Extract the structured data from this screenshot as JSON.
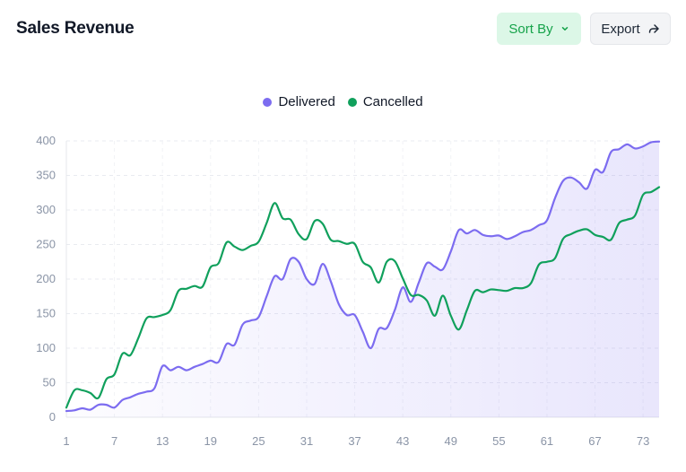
{
  "header": {
    "title": "Sales Revenue",
    "sort_label": "Sort By",
    "export_label": "Export"
  },
  "colors": {
    "delivered": "#7c6cf0",
    "cancelled": "#10a05c",
    "sort_accent": "#16a34a",
    "axis_text": "#8a94a6"
  },
  "icons": {
    "sort": "chevron-down-icon",
    "export": "share-arrow-icon"
  },
  "chart_data": {
    "type": "area",
    "title": "",
    "xlabel": "",
    "ylabel": "",
    "legend_position": "top-center",
    "grid": true,
    "xlim": [
      1,
      75
    ],
    "ylim": [
      0,
      400
    ],
    "x_tick_labels": [
      "1",
      "7",
      "13",
      "19",
      "25",
      "31",
      "37",
      "43",
      "49",
      "55",
      "61",
      "67",
      "73"
    ],
    "y_tick_labels": [
      "0",
      "50",
      "100",
      "150",
      "200",
      "250",
      "300",
      "350",
      "400"
    ],
    "x": [
      1,
      2,
      3,
      4,
      5,
      6,
      7,
      8,
      9,
      10,
      11,
      12,
      13,
      14,
      15,
      16,
      17,
      18,
      19,
      20,
      21,
      22,
      23,
      24,
      25,
      26,
      27,
      28,
      29,
      30,
      31,
      32,
      33,
      34,
      35,
      36,
      37,
      38,
      39,
      40,
      41,
      42,
      43,
      44,
      45,
      46,
      47,
      48,
      49,
      50,
      51,
      52,
      53,
      54,
      55,
      56,
      57,
      58,
      59,
      60,
      61,
      62,
      63,
      64,
      65,
      66,
      67,
      68,
      69,
      70,
      71,
      72,
      73,
      74,
      75
    ],
    "series": [
      {
        "name": "Delivered",
        "color": "#7c6cf0",
        "area": true,
        "values": [
          9,
          10,
          13,
          11,
          18,
          18,
          14,
          25,
          29,
          34,
          37,
          42,
          74,
          68,
          73,
          68,
          73,
          77,
          82,
          80,
          106,
          105,
          134,
          140,
          145,
          175,
          204,
          200,
          229,
          225,
          200,
          193,
          222,
          197,
          164,
          148,
          148,
          124,
          100,
          128,
          129,
          155,
          188,
          167,
          195,
          223,
          218,
          214,
          240,
          271,
          266,
          271,
          264,
          262,
          263,
          258,
          262,
          268,
          271,
          278,
          285,
          317,
          342,
          347,
          340,
          331,
          358,
          355,
          384,
          388,
          395,
          389,
          392,
          398,
          399
        ]
      },
      {
        "name": "Cancelled",
        "color": "#10a05c",
        "area": false,
        "values": [
          14,
          39,
          39,
          35,
          28,
          55,
          62,
          92,
          90,
          115,
          143,
          145,
          148,
          155,
          183,
          186,
          190,
          189,
          217,
          223,
          253,
          247,
          242,
          248,
          254,
          281,
          310,
          288,
          286,
          265,
          258,
          284,
          280,
          257,
          255,
          251,
          251,
          225,
          217,
          195,
          225,
          226,
          201,
          177,
          177,
          169,
          147,
          176,
          147,
          127,
          155,
          183,
          181,
          185,
          184,
          183,
          187,
          187,
          194,
          221,
          225,
          230,
          258,
          265,
          270,
          272,
          264,
          261,
          257,
          281,
          286,
          292,
          322,
          326,
          333
        ]
      }
    ]
  }
}
